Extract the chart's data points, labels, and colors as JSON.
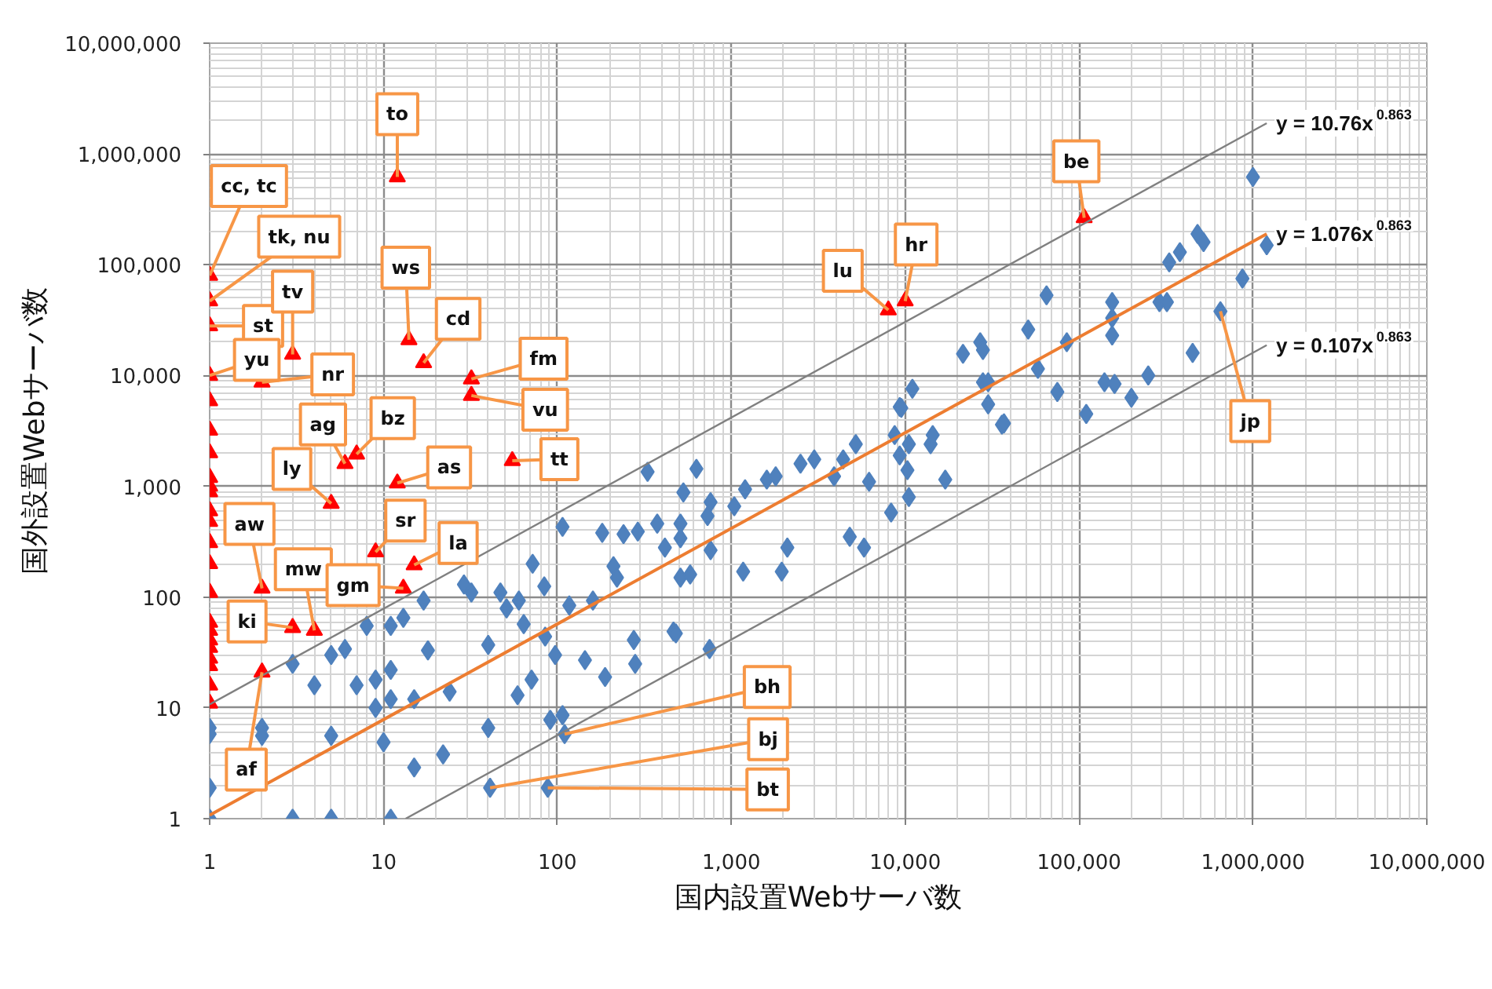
{
  "chart_data": {
    "type": "scatter",
    "xlabel": "国内設置Webサーバ数",
    "ylabel": "国外設置Webサーバ数",
    "log": "xy",
    "xlim": [
      1,
      10000000
    ],
    "ylim": [
      1,
      10000000
    ],
    "xticks": [
      1,
      10,
      100,
      {
        "value": 1000,
        "label": "1,000"
      },
      {
        "value": 10000,
        "label": "10,000"
      },
      {
        "value": 100000,
        "label": "100,000"
      },
      {
        "value": 1000000,
        "label": "1,000,000"
      },
      {
        "value": 10000000,
        "label": "10,000,000"
      }
    ],
    "yticks": [
      1,
      10,
      100,
      {
        "value": 1000,
        "label": "1,000"
      },
      {
        "value": 10000,
        "label": "10,000"
      },
      {
        "value": 100000,
        "label": "100,000"
      },
      {
        "value": 1000000,
        "label": "1,000,000"
      },
      {
        "value": 10000000,
        "label": "10,000,000"
      }
    ],
    "grid": true,
    "series": [
      {
        "type": "scatter",
        "color": "#4f81bd",
        "marker": "diamond",
        "x": [
          1,
          1,
          1,
          1,
          2,
          2,
          3,
          3,
          4,
          5,
          5,
          5,
          6,
          7,
          8,
          9,
          9,
          10,
          11,
          11,
          11,
          11,
          13,
          15,
          15,
          17,
          18,
          22,
          24,
          29,
          32,
          40,
          40,
          47,
          51,
          60,
          64,
          59,
          72,
          71,
          84,
          85,
          97,
          91,
          107,
          117,
          144,
          160,
          181,
          188,
          210,
          240,
          220,
          275,
          280,
          290,
          330,
          375,
          415,
          465,
          630,
          530,
          510,
          510,
          510,
          580,
          760,
          730,
          760,
          1040,
          1200,
          1170,
          1600,
          1800,
          1950,
          2100,
          2500,
          3000,
          3900,
          4400,
          5200,
          4800,
          5800,
          6200,
          8300,
          8700,
          9300,
          10500,
          10300,
          10500,
          14000,
          14400,
          17000,
          480,
          750,
          36000,
          11000,
          9300,
          9500,
          21500,
          27000,
          28000,
          28000,
          30000,
          30000,
          37000,
          51000,
          58000,
          65000,
          75000,
          85000,
          110000,
          140000,
          160000,
          155000,
          155000,
          155000,
          200000,
          250000,
          290000,
          320000,
          330000,
          380000,
          450000,
          480000,
          520000,
          650000,
          870000,
          1000000,
          1200000,
          110,
          41,
          88,
          107
        ],
        "values": [
          6.6,
          5.8,
          1.9,
          1,
          6.6,
          5.6,
          25,
          1,
          16,
          30,
          5.6,
          1,
          34,
          16,
          55,
          18,
          10,
          4.9,
          55,
          12,
          1,
          22,
          65,
          12,
          2.9,
          93,
          33,
          3.8,
          14,
          130,
          110,
          37,
          6.6,
          110,
          79,
          93,
          57,
          13,
          200,
          18,
          125,
          44,
          30,
          7.8,
          430,
          84,
          27,
          93,
          380,
          19,
          190,
          370,
          150,
          41,
          25,
          390,
          1350,
          460,
          280,
          49,
          1440,
          880,
          460,
          340,
          150,
          160,
          720,
          540,
          265,
          660,
          940,
          170,
          1150,
          1230,
          170,
          280,
          1600,
          1750,
          1230,
          1750,
          2400,
          350,
          280,
          1100,
          580,
          2900,
          1900,
          2400,
          1400,
          800,
          2400,
          2900,
          1150,
          47,
          34,
          3600,
          7600,
          5200,
          5100,
          15700,
          20000,
          17000,
          8700,
          8700,
          5500,
          3700,
          26000,
          11500,
          53000,
          7100,
          20000,
          4500,
          8700,
          8400,
          46000,
          33000,
          23000,
          6300,
          10000,
          46000,
          46000,
          105000,
          130000,
          16000,
          190000,
          160000,
          38000,
          75000,
          620000,
          150000,
          5.8,
          1.9,
          1.9,
          8.6
        ]
      },
      {
        "type": "scatter",
        "color": "#ff0000",
        "marker": "triangle",
        "x": [
          1,
          1,
          1,
          1,
          1,
          1,
          1,
          1,
          1,
          1,
          1,
          1,
          1,
          1,
          1,
          1,
          1,
          1,
          1,
          1,
          1,
          1,
          1,
          12,
          3,
          2,
          14,
          17,
          32,
          32,
          6,
          7,
          55,
          12,
          5,
          9,
          15,
          2,
          13,
          4,
          3,
          2,
          8000,
          10000,
          107000
        ],
        "values": [
          80000,
          47000,
          28000,
          10000,
          5900,
          3200,
          2000,
          1200,
          1000,
          890,
          600,
          480,
          310,
          200,
          110,
          59,
          50,
          41,
          35,
          28,
          24,
          16,
          11,
          620000,
          15500,
          8700,
          21000,
          13000,
          9300,
          6600,
          1600,
          1950,
          1700,
          1070,
          700,
          255,
          195,
          120,
          120,
          50,
          53,
          21,
          39000,
          47000,
          265000
        ]
      },
      {
        "type": "line",
        "name": "y = 10.76x$^{0.863}$",
        "color": "#808080",
        "marker": "none",
        "line_style": "solid",
        "x": [
          1,
          1200000
        ],
        "values": [
          10.76,
          1896000
        ]
      },
      {
        "type": "line",
        "name": "y = 1.076x$^{0.863}$",
        "color": "#ed7d31",
        "marker": "none",
        "line_style": "solid",
        "x": [
          1,
          1200000
        ],
        "values": [
          1.076,
          189600
        ]
      },
      {
        "type": "line",
        "name": "y = 0.107x$^{0.863}$",
        "color": "#808080",
        "marker": "none",
        "line_style": "solid",
        "x": [
          13.4,
          1200000
        ],
        "values": [
          1,
          18800
        ]
      }
    ],
    "annotations": [
      {
        "text": "cc, tc",
        "x": 1,
        "y": 80000
      },
      {
        "text": "tk, nu",
        "x": 1,
        "y": 47000
      },
      {
        "text": "st",
        "x": 1,
        "y": 28000
      },
      {
        "text": "yu",
        "x": 1,
        "y": 10000
      },
      {
        "text": "to",
        "x": 12,
        "y": 620000
      },
      {
        "text": "tv",
        "x": 3,
        "y": 15500
      },
      {
        "text": "nr",
        "x": 2,
        "y": 8700
      },
      {
        "text": "ws",
        "x": 14,
        "y": 21000
      },
      {
        "text": "cd",
        "x": 17,
        "y": 13000
      },
      {
        "text": "fm",
        "x": 32,
        "y": 9300
      },
      {
        "text": "vu",
        "x": 32,
        "y": 6600
      },
      {
        "text": "ag",
        "x": 6,
        "y": 1600
      },
      {
        "text": "bz",
        "x": 7,
        "y": 1950
      },
      {
        "text": "tt",
        "x": 55,
        "y": 1700
      },
      {
        "text": "as",
        "x": 12,
        "y": 1070
      },
      {
        "text": "ly",
        "x": 5,
        "y": 700
      },
      {
        "text": "sr",
        "x": 9,
        "y": 255
      },
      {
        "text": "la",
        "x": 15,
        "y": 195
      },
      {
        "text": "aw",
        "x": 2,
        "y": 120
      },
      {
        "text": "mw",
        "x": 4,
        "y": 50
      },
      {
        "text": "gm",
        "x": 13,
        "y": 120
      },
      {
        "text": "ki",
        "x": 3,
        "y": 53
      },
      {
        "text": "af",
        "x": 2,
        "y": 21
      },
      {
        "text": "lu",
        "x": 8000,
        "y": 39000
      },
      {
        "text": "hr",
        "x": 10000,
        "y": 47000
      },
      {
        "text": "be",
        "x": 107000,
        "y": 265000
      },
      {
        "text": "jp",
        "x": 650000,
        "y": 38000
      },
      {
        "text": "bh",
        "x": 110,
        "y": 5.8
      },
      {
        "text": "bj",
        "x": 41,
        "y": 1.9
      },
      {
        "text": "bt",
        "x": 88,
        "y": 1.9
      }
    ]
  }
}
